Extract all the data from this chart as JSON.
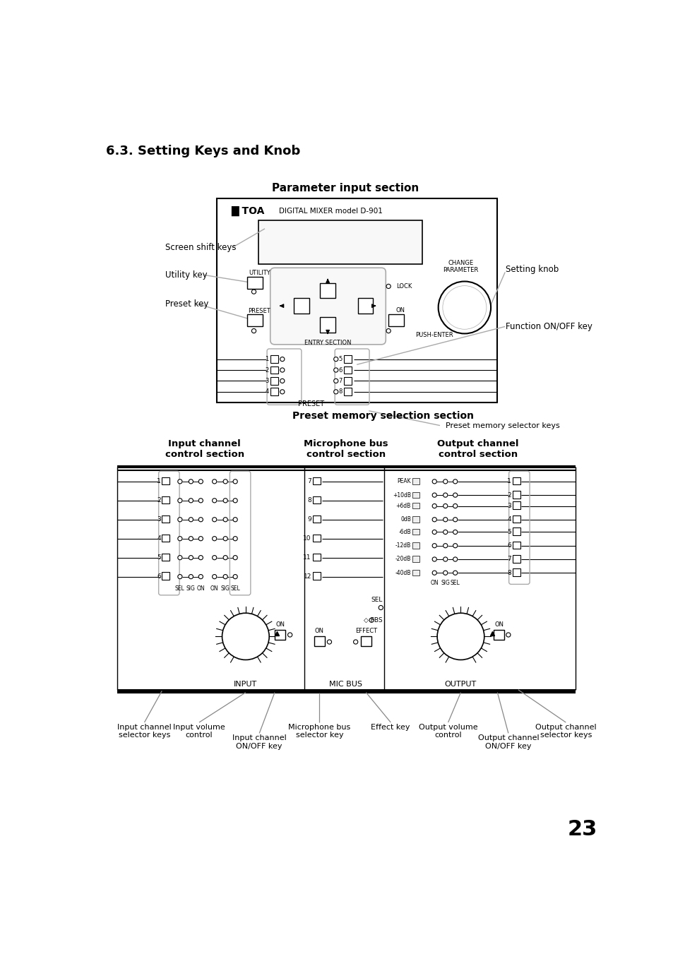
{
  "title": "6.3. Setting Keys and Knob",
  "page_number": "23",
  "section1_title": "Parameter input section",
  "preset_memory_section": "Preset memory selection section",
  "preset_memory_keys": "Preset memory selector keys",
  "input_section_label": "Input channel\ncontrol section",
  "mic_section_label": "Microphone bus\ncontrol section",
  "output_section_label": "Output channel\ncontrol section",
  "left_labels": [
    "Screen shift keys",
    "Utility key",
    "Preset key"
  ],
  "right_labels_top": [
    "Setting knob",
    "Function ON/OFF key"
  ],
  "level_labels": [
    "PEAK",
    "+10dB",
    "+6dB",
    "0dB",
    "-6dB",
    "-12dB",
    "-20dB",
    "-40dB"
  ],
  "bottom_labels": [
    [
      "Input channel\nselector keys",
      110,
      1185
    ],
    [
      "Input volume\ncontrol",
      215,
      1185
    ],
    [
      "Input channel\nON/OFF key",
      310,
      1200
    ],
    [
      "Microphone bus\nselector key",
      450,
      1185
    ],
    [
      "Effect key",
      560,
      1185
    ],
    [
      "Output volume\ncontrol",
      680,
      1185
    ],
    [
      "Output channel\nON/OFF key",
      790,
      1200
    ],
    [
      "Output channel\nselector keys",
      880,
      1185
    ]
  ],
  "bg_color": "#ffffff"
}
